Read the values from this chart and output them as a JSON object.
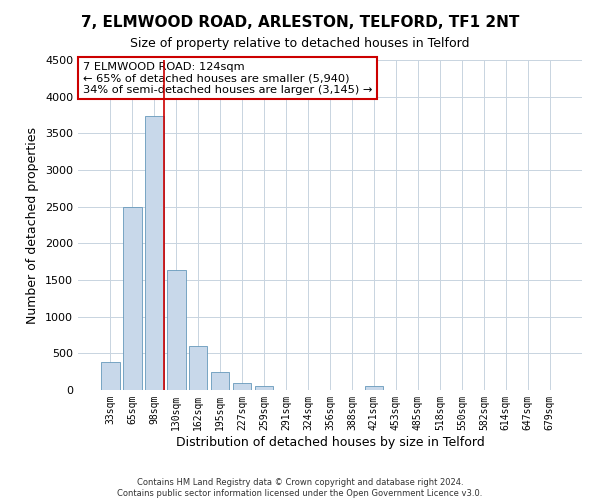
{
  "title": "7, ELMWOOD ROAD, ARLESTON, TELFORD, TF1 2NT",
  "subtitle": "Size of property relative to detached houses in Telford",
  "xlabel": "Distribution of detached houses by size in Telford",
  "ylabel": "Number of detached properties",
  "bar_labels": [
    "33sqm",
    "65sqm",
    "98sqm",
    "130sqm",
    "162sqm",
    "195sqm",
    "227sqm",
    "259sqm",
    "291sqm",
    "324sqm",
    "356sqm",
    "388sqm",
    "421sqm",
    "453sqm",
    "485sqm",
    "518sqm",
    "550sqm",
    "582sqm",
    "614sqm",
    "647sqm",
    "679sqm"
  ],
  "bar_values": [
    380,
    2500,
    3730,
    1640,
    600,
    240,
    100,
    55,
    0,
    0,
    0,
    0,
    55,
    0,
    0,
    0,
    0,
    0,
    0,
    0,
    0
  ],
  "bar_color": "#c8d8ea",
  "bar_edge_color": "#6699bb",
  "property_line_color": "#cc0000",
  "ylim": [
    0,
    4500
  ],
  "yticks": [
    0,
    500,
    1000,
    1500,
    2000,
    2500,
    3000,
    3500,
    4000,
    4500
  ],
  "annotation_line1": "7 ELMWOOD ROAD: 124sqm",
  "annotation_line2": "← 65% of detached houses are smaller (5,940)",
  "annotation_line3": "34% of semi-detached houses are larger (3,145) →",
  "annotation_box_color": "#ffffff",
  "annotation_box_edge": "#cc0000",
  "footer_line1": "Contains HM Land Registry data © Crown copyright and database right 2024.",
  "footer_line2": "Contains public sector information licensed under the Open Government Licence v3.0.",
  "background_color": "#ffffff",
  "grid_color": "#c8d4e0",
  "title_fontsize": 11,
  "subtitle_fontsize": 9,
  "ylabel_fontsize": 9,
  "xlabel_fontsize": 9
}
